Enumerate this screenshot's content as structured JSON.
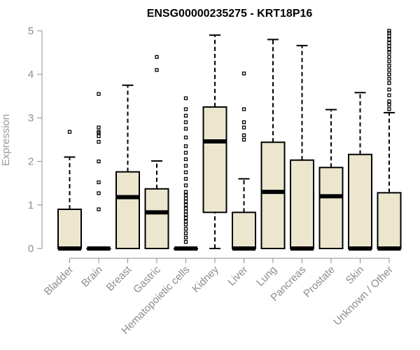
{
  "chart_data": {
    "type": "box",
    "title": "ENSG00000235275 - KRT18P16",
    "xlabel": "",
    "ylabel": "Expression",
    "ylim": [
      0,
      5
    ],
    "yticks": [
      0,
      1,
      2,
      3,
      4,
      5
    ],
    "grid": false,
    "box_color": "#ede6cf",
    "categories": [
      "Bladder",
      "Brain",
      "Breast",
      "Gastric",
      "Hematopoietic cells",
      "Kidney",
      "Liver",
      "Lung",
      "Pancreas",
      "Prostate",
      "Skin",
      "Unknown / Other"
    ],
    "boxes": [
      {
        "category": "Bladder",
        "min": 0,
        "q1": 0,
        "median": 0,
        "q3": 0.9,
        "max": 2.1,
        "outliers": [
          2.68
        ]
      },
      {
        "category": "Brain",
        "min": 0,
        "q1": 0,
        "median": 0,
        "q3": 0,
        "max": 0,
        "outliers": [
          0.9,
          1.27,
          1.52,
          2.0,
          2.45,
          2.58,
          2.65,
          2.68,
          2.78,
          3.55
        ]
      },
      {
        "category": "Breast",
        "min": 0,
        "q1": 0,
        "median": 1.18,
        "q3": 1.76,
        "max": 3.75,
        "outliers": []
      },
      {
        "category": "Gastric",
        "min": 0,
        "q1": 0,
        "median": 0.83,
        "q3": 1.37,
        "max": 2.01,
        "outliers": [
          4.1,
          4.4
        ]
      },
      {
        "category": "Hematopoietic cells",
        "min": 0,
        "q1": 0,
        "median": 0,
        "q3": 0,
        "max": 0,
        "outliers": [
          0.15,
          0.25,
          0.35,
          0.45,
          0.55,
          0.62,
          0.7,
          0.78,
          0.85,
          0.92,
          1.0,
          1.08,
          1.15,
          1.22,
          1.3,
          1.45,
          1.6,
          1.75,
          1.9,
          2.05,
          2.2,
          2.35,
          2.55,
          2.75,
          2.9,
          3.05,
          3.2,
          3.45
        ]
      },
      {
        "category": "Kidney",
        "min": 0,
        "q1": 0.83,
        "median": 2.46,
        "q3": 3.25,
        "max": 4.9,
        "outliers": []
      },
      {
        "category": "Liver",
        "min": 0,
        "q1": 0,
        "median": 0,
        "q3": 0.83,
        "max": 1.6,
        "outliers": [
          2.5,
          2.6,
          2.78,
          2.9,
          3.2,
          4.02
        ]
      },
      {
        "category": "Lung",
        "min": 0,
        "q1": 0,
        "median": 1.3,
        "q3": 2.44,
        "max": 4.8,
        "outliers": []
      },
      {
        "category": "Pancreas",
        "min": 0,
        "q1": 0,
        "median": 0,
        "q3": 2.03,
        "max": 4.66,
        "outliers": []
      },
      {
        "category": "Prostate",
        "min": 0,
        "q1": 0,
        "median": 1.2,
        "q3": 1.86,
        "max": 3.19,
        "outliers": []
      },
      {
        "category": "Skin",
        "min": 0,
        "q1": 0,
        "median": 0,
        "q3": 2.16,
        "max": 3.58,
        "outliers": []
      },
      {
        "category": "Unknown / Other",
        "min": 0,
        "q1": 0,
        "median": 0,
        "q3": 1.28,
        "max": 3.12,
        "outliers": [
          3.2,
          3.3,
          3.38,
          3.52,
          3.65,
          3.8,
          3.9,
          4.0,
          4.1,
          4.2,
          4.3,
          4.4,
          4.5,
          4.58,
          4.65,
          4.72,
          4.8,
          4.88,
          4.95,
          5.0
        ]
      }
    ]
  }
}
